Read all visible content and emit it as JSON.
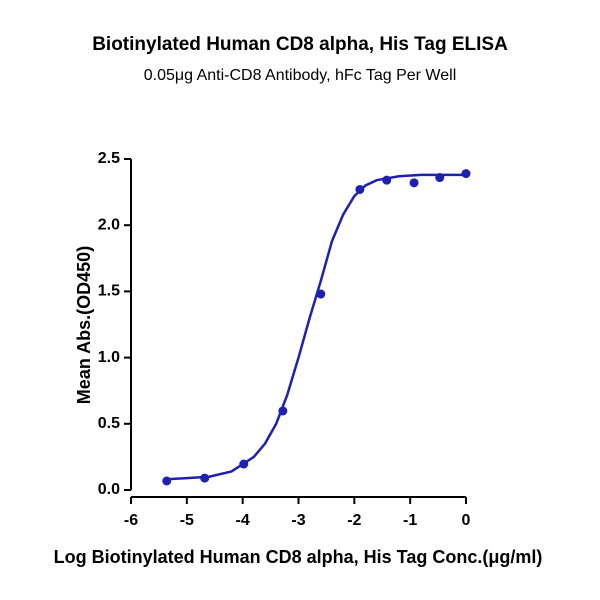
{
  "chart_data": {
    "type": "scatter",
    "title": "Biotinylated Human CD8 alpha, His Tag ELISA",
    "subtitle": "0.05μg Anti-CD8 Antibody, hFc Tag Per Well",
    "x_label": "Log Biotinylated Human CD8 alpha, His Tag Conc.(μg/ml)",
    "y_label": "Mean Abs.(OD450)",
    "xlim": [
      -6,
      0
    ],
    "xticks": [
      -6,
      -5,
      -4,
      -3,
      -2,
      -1,
      0
    ],
    "ylim": [
      0,
      2.5
    ],
    "yticks": [
      {
        "value": 0,
        "label": "0.0"
      },
      0.5,
      {
        "value": 1,
        "label": "1.0"
      },
      1.5,
      {
        "value": 2,
        "label": "2.0"
      },
      2.5
    ],
    "grid": false,
    "series": [
      {
        "mode": "markers",
        "color": "#2020b0",
        "x": [
          -5.36,
          -4.68,
          -3.98,
          -3.28,
          -2.6,
          -1.9,
          -1.42,
          -0.93,
          -0.47,
          0
        ],
        "values": [
          0.068,
          0.09,
          0.196,
          0.597,
          1.48,
          2.27,
          2.34,
          2.32,
          2.36,
          2.39
        ]
      },
      {
        "mode": "line",
        "color": "#2020b0",
        "x": [
          -5.4,
          -5.0,
          -4.6,
          -4.2,
          -3.8,
          -3.6,
          -3.4,
          -3.2,
          -3.0,
          -2.8,
          -2.6,
          -2.4,
          -2.2,
          -2.0,
          -1.8,
          -1.6,
          -1.2,
          -0.8,
          0
        ],
        "values": [
          0.08,
          0.09,
          0.1,
          0.14,
          0.25,
          0.35,
          0.5,
          0.72,
          1.0,
          1.3,
          1.58,
          1.88,
          2.08,
          2.22,
          2.3,
          2.34,
          2.37,
          2.38,
          2.38
        ]
      }
    ]
  }
}
